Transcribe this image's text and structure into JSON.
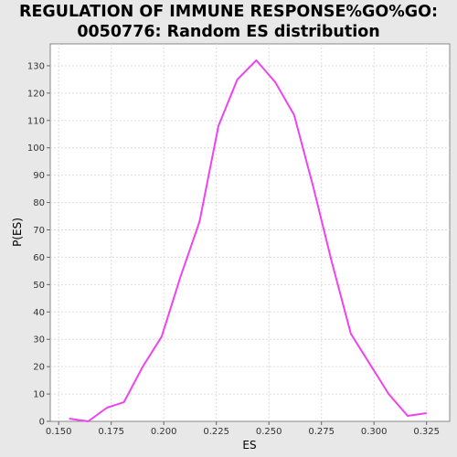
{
  "chart_data": {
    "type": "line",
    "title_lines": [
      "REGULATION OF IMMUNE RESPONSE%GO%GO:",
      "0050776: Random ES distribution"
    ],
    "xlabel": "ES",
    "ylabel": "P(ES)",
    "xlim": [
      0.146,
      0.336
    ],
    "ylim": [
      0,
      138
    ],
    "xticks": [
      0.15,
      0.175,
      0.2,
      0.225,
      0.25,
      0.275,
      0.3,
      0.325
    ],
    "xtick_labels": [
      "0.150",
      "0.175",
      "0.200",
      "0.225",
      "0.250",
      "0.275",
      "0.300",
      "0.325"
    ],
    "yticks": [
      0,
      10,
      20,
      30,
      40,
      50,
      60,
      70,
      80,
      90,
      100,
      110,
      120,
      130
    ],
    "grid": true,
    "series": [
      {
        "color": "#ee44ee",
        "x": [
          0.155,
          0.164,
          0.173,
          0.181,
          0.19,
          0.199,
          0.208,
          0.217,
          0.226,
          0.235,
          0.244,
          0.253,
          0.262,
          0.271,
          0.28,
          0.289,
          0.298,
          0.307,
          0.316,
          0.325
        ],
        "y": [
          1,
          0,
          5,
          7,
          20,
          31,
          53,
          73,
          108,
          125,
          132,
          124,
          112,
          86,
          58,
          32,
          21,
          10,
          2,
          3
        ]
      }
    ]
  }
}
